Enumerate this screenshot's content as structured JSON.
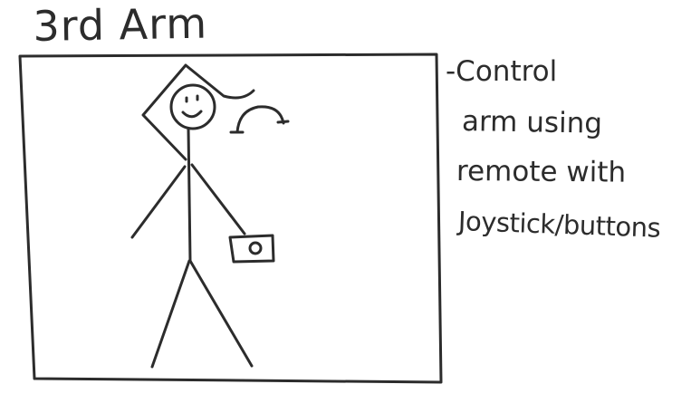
{
  "title": "3rd Arm",
  "note": {
    "lines": [
      "-Control",
      "arm using",
      "remote with",
      "Joystick/buttons"
    ]
  },
  "colors": {
    "ink": "#2c2c2c",
    "paper": "#ffffff"
  }
}
